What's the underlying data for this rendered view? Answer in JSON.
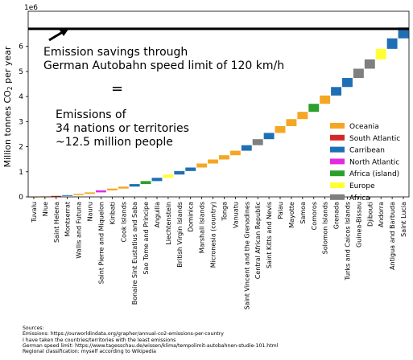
{
  "chart_data": {
    "type": "bar",
    "ylabel": "Million tonnes CO₂ per year",
    "ylabel_parts": [
      "Million tonnes CO",
      "2",
      " per year"
    ],
    "yexponent_label": "1e6",
    "ylim": [
      0,
      7.4
    ],
    "yticks": [
      "0",
      "1",
      "2",
      "3",
      "4",
      "5",
      "6"
    ],
    "reference_line": {
      "value": 6.7,
      "color": "#000000"
    },
    "annotation": {
      "line1": "Emission savings through",
      "line2": "German Autobahn speed limit of 120 km/h",
      "equals": "=",
      "line3": "Emissions of",
      "line4": "34 nations or territories",
      "line5": "~12.5 million people"
    },
    "legend": {
      "position": "right",
      "entries": [
        {
          "name": "Oceania",
          "color": "#f5a623"
        },
        {
          "name": "South Atlantic",
          "color": "#d62728"
        },
        {
          "name": "Carribean",
          "color": "#1f6fb4"
        },
        {
          "name": "North Atlantic",
          "color": "#e12ce0"
        },
        {
          "name": "Africa (island)",
          "color": "#2ca02c"
        },
        {
          "name": "Europe",
          "color": "#ffff33"
        },
        {
          "name": "Africa",
          "color": "#7f7f7f"
        }
      ]
    },
    "categories": [
      "Tuvalu",
      "Niue",
      "Saint Helena",
      "Montserrat",
      "Wallis and Futuna",
      "Nauru",
      "Saint Pierre and Miquelon",
      "Kiribati",
      "Cook Islands",
      "Bonaire Sint Eustatius and Saba",
      "Sao Tome and Principe",
      "Anguilla",
      "Liechtenstein",
      "British Virgin Islands",
      "Dominica",
      "Marshall Islands",
      "Micronesia (country)",
      "Tonga",
      "Vanuatu",
      "Saint Vincent and the Grenadines",
      "Central African Republic",
      "Saint Kitts and Nevis",
      "Palau",
      "Mayotte",
      "Samoa",
      "Comoros",
      "Solomon Islands",
      "Grenada",
      "Turks and Caicos Islands",
      "Guinea-Bissau",
      "Djibouti",
      "Andorra",
      "Antigua and Barbuda",
      "Saint Lucia"
    ],
    "regions": [
      "Oceania",
      "Oceania",
      "South Atlantic",
      "Carribean",
      "Oceania",
      "Oceania",
      "North Atlantic",
      "Oceania",
      "Oceania",
      "Carribean",
      "Africa (island)",
      "Carribean",
      "Europe",
      "Carribean",
      "Carribean",
      "Oceania",
      "Oceania",
      "Oceania",
      "Oceania",
      "Carribean",
      "Africa",
      "Carribean",
      "Oceania",
      "Oceania",
      "Oceania",
      "Africa (island)",
      "Oceania",
      "Carribean",
      "Carribean",
      "Africa",
      "Africa",
      "Europe",
      "Carribean",
      "Carribean"
    ],
    "starts": [
      0.0,
      0.01,
      0.02,
      0.04,
      0.07,
      0.12,
      0.18,
      0.26,
      0.33,
      0.41,
      0.51,
      0.63,
      0.76,
      0.89,
      1.03,
      1.17,
      1.33,
      1.49,
      1.66,
      1.84,
      2.06,
      2.3,
      2.55,
      2.82,
      3.1,
      3.39,
      3.71,
      4.04,
      4.38,
      4.74,
      5.11,
      5.48,
      5.9,
      6.32
    ],
    "values": [
      0.01,
      0.01,
      0.02,
      0.03,
      0.05,
      0.06,
      0.08,
      0.07,
      0.08,
      0.1,
      0.12,
      0.13,
      0.13,
      0.14,
      0.14,
      0.16,
      0.16,
      0.17,
      0.18,
      0.22,
      0.24,
      0.25,
      0.27,
      0.28,
      0.29,
      0.32,
      0.33,
      0.34,
      0.36,
      0.37,
      0.37,
      0.42,
      0.42,
      0.43
    ]
  },
  "sources": {
    "heading": "Sources:",
    "line1": "Emissions: https://ourworldindata.org/grapher/annual-co2-emissions-per-country",
    "line2": "I have taken the countries/territories with the least emissions",
    "line3": "German speed limit: https://www.tagesschau.de/wissen/klima/tempolimit-autobahnen-studie-101.html",
    "line4": "Regional classification: myself according to Wikipedia"
  }
}
